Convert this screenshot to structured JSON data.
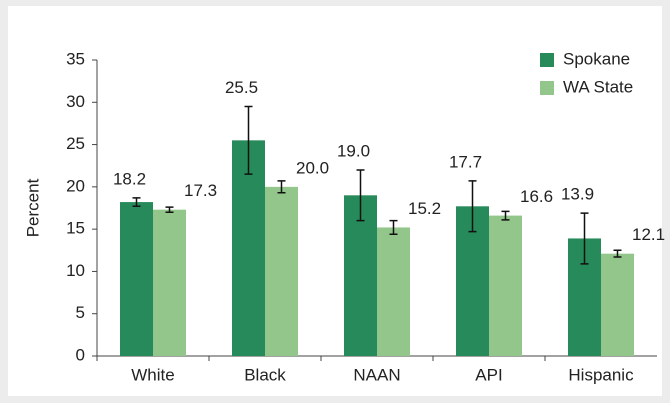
{
  "chart_data": {
    "type": "bar",
    "y_label": "Percent",
    "categories": [
      "White",
      "Black",
      "NAAN",
      "API",
      "Hispanic"
    ],
    "series": [
      {
        "name": "Spokane",
        "color": "#268a5b",
        "values": [
          18.2,
          25.5,
          19.0,
          17.7,
          13.9
        ],
        "value_labels": [
          "18.2",
          "25.5",
          "19.0",
          "17.7",
          "13.9"
        ],
        "errors": [
          0.5,
          4.0,
          3.0,
          3.0,
          3.0
        ]
      },
      {
        "name": "WA State",
        "color": "#93c68a",
        "values": [
          17.3,
          20.0,
          15.2,
          16.6,
          12.1
        ],
        "value_labels": [
          "17.3",
          "20.0",
          "15.2",
          "16.6",
          "12.1"
        ],
        "errors": [
          0.3,
          0.7,
          0.8,
          0.5,
          0.4
        ]
      }
    ],
    "ylim": [
      0,
      35
    ],
    "yticks": [
      0,
      5,
      10,
      15,
      20,
      25,
      30,
      35
    ],
    "grid": false,
    "legend": "top-right"
  }
}
